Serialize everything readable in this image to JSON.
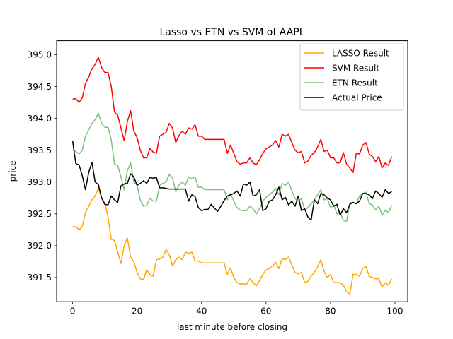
{
  "chart_data": {
    "type": "line",
    "title": "Lasso vs ETN vs SVM of AAPL",
    "xlabel": "last minute before closing",
    "ylabel": "price",
    "xlim": [
      -4.95,
      103.95
    ],
    "ylim": [
      391.12,
      395.22
    ],
    "xticks": [
      0,
      20,
      40,
      60,
      80,
      100
    ],
    "yticks": [
      391.5,
      392.0,
      392.5,
      393.0,
      393.5,
      394.0,
      394.5,
      395.0
    ],
    "xtick_labels": [
      "0",
      "20",
      "40",
      "60",
      "80",
      "100"
    ],
    "ytick_labels": [
      "391.5",
      "392.0",
      "392.5",
      "393.0",
      "393.5",
      "394.0",
      "394.5",
      "395.0"
    ],
    "grid": false,
    "legend_position": "top-right",
    "x": [
      0,
      1,
      2,
      3,
      4,
      5,
      6,
      7,
      8,
      9,
      10,
      11,
      12,
      13,
      14,
      15,
      16,
      17,
      18,
      19,
      20,
      21,
      22,
      23,
      24,
      25,
      26,
      27,
      28,
      29,
      30,
      31,
      32,
      33,
      34,
      35,
      36,
      37,
      38,
      39,
      40,
      41,
      42,
      43,
      44,
      45,
      46,
      47,
      48,
      49,
      50,
      51,
      52,
      53,
      54,
      55,
      56,
      57,
      58,
      59,
      60,
      61,
      62,
      63,
      64,
      65,
      66,
      67,
      68,
      69,
      70,
      71,
      72,
      73,
      74,
      75,
      76,
      77,
      78,
      79,
      80,
      81,
      82,
      83,
      84,
      85,
      86,
      87,
      88,
      89,
      90,
      91,
      92,
      93,
      94,
      95,
      96,
      97,
      98,
      99
    ],
    "series": [
      {
        "name": "LASSO Result",
        "color": "#ffa500",
        "values": [
          392.3,
          392.3,
          392.25,
          392.3,
          392.52,
          392.62,
          392.72,
          392.78,
          392.9,
          392.75,
          392.68,
          392.45,
          392.1,
          392.08,
          391.9,
          391.72,
          392.0,
          392.12,
          391.82,
          391.75,
          391.58,
          391.48,
          391.47,
          391.62,
          391.55,
          391.52,
          391.78,
          391.79,
          391.82,
          391.94,
          391.86,
          391.68,
          391.78,
          391.82,
          391.78,
          391.9,
          391.88,
          391.9,
          391.76,
          391.76,
          391.73,
          391.73,
          391.73,
          391.73,
          391.73,
          391.73,
          391.73,
          391.73,
          391.55,
          391.65,
          391.5,
          391.42,
          391.4,
          391.4,
          391.4,
          391.48,
          391.42,
          391.37,
          391.45,
          391.55,
          391.62,
          391.64,
          391.68,
          391.74,
          391.64,
          391.8,
          391.78,
          391.82,
          391.7,
          391.58,
          391.56,
          391.58,
          391.42,
          391.44,
          391.52,
          391.58,
          391.67,
          391.78,
          391.6,
          391.5,
          391.55,
          391.42,
          391.42,
          391.42,
          391.38,
          391.28,
          391.24,
          391.55,
          391.55,
          391.52,
          391.64,
          391.68,
          391.52,
          391.5,
          391.48,
          391.48,
          391.35,
          391.42,
          391.38,
          391.48
        ]
      },
      {
        "name": "SVM Result",
        "color": "#ff0000",
        "values": [
          394.3,
          394.31,
          394.25,
          394.32,
          394.55,
          394.65,
          394.78,
          394.85,
          394.96,
          394.8,
          394.72,
          394.72,
          394.5,
          394.1,
          394.05,
          393.85,
          393.65,
          393.95,
          394.12,
          393.8,
          393.7,
          393.5,
          393.38,
          393.38,
          393.53,
          393.47,
          393.45,
          393.72,
          393.75,
          393.78,
          393.92,
          393.85,
          393.62,
          393.73,
          393.8,
          393.75,
          393.85,
          393.83,
          393.9,
          393.72,
          393.72,
          393.67,
          393.67,
          393.67,
          393.67,
          393.67,
          393.67,
          393.67,
          393.45,
          393.58,
          393.45,
          393.32,
          393.28,
          393.3,
          393.3,
          393.38,
          393.3,
          393.27,
          393.35,
          393.45,
          393.52,
          393.55,
          393.58,
          393.65,
          393.55,
          393.75,
          393.72,
          393.75,
          393.62,
          393.5,
          393.46,
          393.48,
          393.3,
          393.33,
          393.42,
          393.46,
          393.55,
          393.67,
          393.48,
          393.5,
          393.38,
          393.38,
          393.3,
          393.3,
          393.46,
          393.28,
          393.22,
          393.15,
          393.45,
          393.44,
          393.58,
          393.62,
          393.44,
          393.4,
          393.32,
          393.4,
          393.22,
          393.3,
          393.26,
          393.4
        ]
      },
      {
        "name": "ETN Result",
        "color": "#7fbf7f",
        "values": [
          393.5,
          393.48,
          393.44,
          393.5,
          393.72,
          393.82,
          393.92,
          393.98,
          394.08,
          393.92,
          393.86,
          393.86,
          393.66,
          393.28,
          393.26,
          393.08,
          392.88,
          393.18,
          393.3,
          393.0,
          392.95,
          392.72,
          392.62,
          392.63,
          392.75,
          392.7,
          392.7,
          392.95,
          392.98,
          393.0,
          393.12,
          393.06,
          392.85,
          392.95,
          393.0,
          392.95,
          393.08,
          393.05,
          393.08,
          392.92,
          392.92,
          392.88,
          392.88,
          392.88,
          392.88,
          392.88,
          392.88,
          392.88,
          392.72,
          392.82,
          392.7,
          392.6,
          392.56,
          392.55,
          392.55,
          392.62,
          392.58,
          392.5,
          392.58,
          392.7,
          392.76,
          392.8,
          392.84,
          392.9,
          392.8,
          392.98,
          392.95,
          393.0,
          392.86,
          392.74,
          392.7,
          392.74,
          392.56,
          392.6,
          392.66,
          392.72,
          392.8,
          392.88,
          392.72,
          392.74,
          392.6,
          392.64,
          392.5,
          392.52,
          392.4,
          392.38,
          392.68,
          392.68,
          392.66,
          392.78,
          392.82,
          392.84,
          392.66,
          392.64,
          392.56,
          392.62,
          392.48,
          392.56,
          392.52,
          392.64
        ]
      },
      {
        "name": "Actual Price",
        "color": "#000000",
        "values": [
          393.65,
          393.29,
          393.27,
          393.1,
          392.88,
          393.15,
          393.31,
          393.0,
          392.96,
          392.75,
          392.65,
          392.64,
          392.78,
          392.72,
          392.68,
          392.94,
          392.97,
          392.98,
          393.13,
          393.08,
          392.95,
          392.98,
          393.02,
          392.98,
          393.07,
          393.06,
          393.07,
          392.91,
          392.91,
          392.9,
          392.89,
          392.89,
          392.89,
          392.89,
          392.89,
          392.89,
          392.7,
          392.8,
          392.77,
          392.6,
          392.55,
          392.57,
          392.57,
          392.65,
          392.59,
          392.54,
          392.62,
          392.71,
          392.78,
          392.8,
          392.82,
          392.86,
          392.78,
          392.97,
          392.95,
          393.0,
          392.78,
          392.8,
          392.88,
          392.55,
          392.58,
          392.7,
          392.72,
          392.8,
          392.92,
          392.72,
          392.76,
          392.64,
          392.7,
          392.62,
          392.78,
          392.55,
          392.58,
          392.45,
          392.4,
          392.72,
          392.66,
          392.82,
          392.8,
          392.75,
          392.72,
          392.62,
          392.65,
          392.48,
          392.58,
          392.52,
          392.65,
          392.68,
          392.66,
          392.7,
          392.82,
          392.82,
          392.8,
          392.74,
          392.86,
          392.82,
          392.76,
          392.88,
          392.82,
          392.85
        ]
      }
    ]
  }
}
